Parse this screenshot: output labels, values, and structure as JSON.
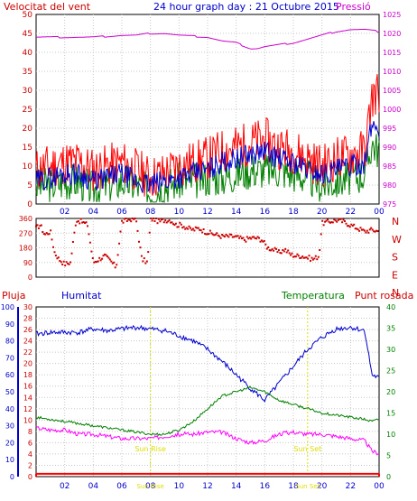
{
  "header": {
    "left_title": "Velocitat del vent",
    "center_title": "24 hour graph day : 21 Octubre 2015",
    "right_title": "Pressió"
  },
  "lower_header": {
    "rain_label": "Pluja",
    "humidity_label": "Humitat",
    "temperature_label": "Temperatura",
    "dewpoint_label": "Punt rosada"
  },
  "colors": {
    "wind_gust": "#ff0000",
    "wind_avg": "#0000cc",
    "wind_green": "#008000",
    "pressure": "#cc00cc",
    "direction": "#cc0000",
    "humidity": "#0000cc",
    "temperature": "#008000",
    "dewpoint": "#ff00ff",
    "rain": "#ff0000",
    "sun": "#dddd00",
    "title": "#0000cc",
    "axis_red": "#cc0000",
    "axis_blue": "#0000cc",
    "axis_green": "#008000",
    "axis_magenta": "#cc00cc"
  },
  "sun_labels": {
    "rise": "Sun Rise",
    "set": "Sun Set"
  },
  "chart_data": [
    {
      "type": "line",
      "x_tick_labels": [
        "02",
        "04",
        "06",
        "08",
        "10",
        "12",
        "14",
        "16",
        "18",
        "20",
        "22",
        "00"
      ],
      "left_axis": {
        "label": "Velocitat del vent",
        "ticks": [
          "0",
          "5",
          "10",
          "15",
          "20",
          "25",
          "30",
          "35",
          "40",
          "45",
          "50"
        ],
        "range": [
          0,
          50
        ]
      },
      "right_axis": {
        "label": "Pressió",
        "ticks": [
          "975",
          "980",
          "985",
          "990",
          "995",
          "1000",
          "1005",
          "1010",
          "1015",
          "1020",
          "1025"
        ],
        "range": [
          975,
          1025
        ]
      },
      "grid": true,
      "series": [
        {
          "axis": "right",
          "x": [
            0.0,
            2.0,
            4.0,
            6.0,
            7.0,
            8.0,
            9.0,
            10.0,
            12.0,
            13.0,
            14.0,
            15.0,
            15.5,
            16.0,
            17.0,
            18.0,
            19.0,
            20.0,
            21.0,
            22.0,
            23.0,
            24.0
          ],
          "values": [
            1019,
            1019,
            1019,
            1019.5,
            1019.5,
            1020,
            1020,
            1019.5,
            1019,
            1018,
            1017.5,
            1016,
            1016,
            1016.5,
            1017,
            1017.5,
            1018.5,
            1019.5,
            1020.5,
            1021,
            1021,
            1020.5
          ]
        },
        {
          "axis": "left",
          "x": [
            0,
            1,
            2,
            3,
            4,
            5,
            6,
            7,
            8,
            9,
            10,
            11,
            12,
            13,
            14,
            15,
            16,
            17,
            18,
            19,
            20,
            21,
            22,
            23,
            23.5,
            24
          ],
          "values": [
            9,
            10,
            11,
            11,
            9,
            10,
            11,
            9,
            7,
            8,
            10,
            11,
            12,
            14,
            15,
            16,
            17,
            15,
            14,
            12,
            10,
            12,
            13,
            14,
            28,
            30
          ]
        },
        {
          "axis": "left",
          "x": [
            0,
            1,
            2,
            3,
            4,
            5,
            6,
            7,
            8,
            9,
            10,
            11,
            12,
            13,
            14,
            15,
            16,
            17,
            18,
            19,
            20,
            21,
            22,
            23,
            23.5,
            24
          ],
          "values": [
            6,
            7,
            8,
            8,
            6,
            7,
            8,
            6,
            5,
            6,
            7,
            8,
            9,
            11,
            12,
            13,
            14,
            12,
            11,
            9,
            8,
            9,
            10,
            11,
            21,
            20
          ]
        },
        {
          "axis": "left",
          "x": [
            0,
            1,
            2,
            3,
            4,
            5,
            6,
            7,
            8,
            9,
            10,
            11,
            12,
            13,
            14,
            15,
            16,
            17,
            18,
            19,
            20,
            21,
            22,
            23,
            23.5,
            24
          ],
          "values": [
            5,
            5,
            6,
            6,
            4,
            5,
            6,
            5,
            3,
            5,
            6,
            6,
            7,
            7,
            8,
            9,
            9,
            9,
            8,
            7,
            5,
            6,
            7,
            8,
            16,
            14
          ]
        }
      ]
    },
    {
      "type": "scatter",
      "left_axis": {
        "ticks": [
          "0",
          "90",
          "180",
          "270",
          "360"
        ],
        "range": [
          0,
          360
        ]
      },
      "right_axis": {
        "ticks": [
          "N",
          "W",
          "S",
          "E",
          "N"
        ]
      },
      "x": [
        0.0,
        0.3,
        0.6,
        1.0,
        1.3,
        1.6,
        2.0,
        2.4,
        2.8,
        3.2,
        3.6,
        4.0,
        4.4,
        4.8,
        5.2,
        5.6,
        6.0,
        6.4,
        6.8,
        7.0,
        7.4,
        7.8,
        8.0,
        8.2,
        8.6,
        9.0,
        9.4,
        9.8,
        10.2,
        10.6,
        11.0,
        11.4,
        11.8,
        12.2,
        12.6,
        13.0,
        13.4,
        13.8,
        14.2,
        14.6,
        15.0,
        15.4,
        15.8,
        16.2,
        16.6,
        17.0,
        17.4,
        17.8,
        18.2,
        18.6,
        19.0,
        19.4,
        19.8,
        20.0,
        20.5,
        21.0,
        21.5,
        22.0,
        22.5,
        23.0,
        23.5,
        24.0
      ],
      "values": [
        300,
        320,
        260,
        280,
        150,
        110,
        80,
        90,
        350,
        340,
        320,
        90,
        110,
        130,
        100,
        60,
        340,
        350,
        360,
        350,
        110,
        90,
        350,
        360,
        340,
        350,
        350,
        320,
        320,
        300,
        290,
        300,
        280,
        270,
        260,
        250,
        250,
        250,
        240,
        230,
        240,
        240,
        230,
        180,
        170,
        150,
        170,
        140,
        130,
        130,
        120,
        110,
        130,
        330,
        340,
        350,
        340,
        320,
        300,
        280,
        290,
        280
      ]
    },
    {
      "type": "line",
      "x_tick_labels": [
        "02",
        "04",
        "06",
        "08",
        "10",
        "12",
        "14",
        "16",
        "18",
        "20",
        "22",
        "00"
      ],
      "left_axis_humidity": {
        "label": "Humitat",
        "ticks": [
          "0",
          "10",
          "20",
          "30",
          "40",
          "50",
          "60",
          "70",
          "80",
          "90",
          "100"
        ],
        "range": [
          0,
          100
        ]
      },
      "left_axis_rain": {
        "label": "Pluja",
        "ticks": [
          "0",
          "2",
          "4",
          "6",
          "8",
          "10",
          "12",
          "14",
          "16",
          "18",
          "20",
          "22",
          "24",
          "26",
          "28",
          "30"
        ],
        "range": [
          0,
          30
        ]
      },
      "right_axis": {
        "label": "Temperatura",
        "ticks": [
          "0",
          "5",
          "10",
          "15",
          "20",
          "25",
          "30",
          "35",
          "40"
        ],
        "range": [
          0,
          40
        ]
      },
      "grid": true,
      "series": [
        {
          "axis": "humidity",
          "x": [
            0,
            1,
            2,
            3,
            4,
            5,
            6,
            7,
            8,
            9,
            10,
            11,
            12,
            13,
            14,
            15,
            16,
            17,
            18,
            19,
            20,
            21,
            22,
            23,
            23.5,
            24
          ],
          "values": [
            84,
            85,
            85,
            85,
            87,
            86,
            87,
            88,
            87,
            86,
            83,
            80,
            75,
            68,
            60,
            52,
            45,
            55,
            65,
            75,
            82,
            87,
            88,
            86,
            60,
            58
          ]
        },
        {
          "axis": "temperature",
          "x": [
            0,
            1,
            2,
            3,
            4,
            5,
            6,
            7,
            8,
            9,
            10,
            11,
            12,
            13,
            14,
            15,
            16,
            17,
            18,
            19,
            20,
            21,
            22,
            23,
            23.5,
            24
          ],
          "values": [
            14,
            13.5,
            13,
            12.5,
            12,
            11.5,
            11,
            10.5,
            10,
            10,
            11,
            13,
            16,
            19,
            20,
            21,
            20,
            18,
            17,
            16,
            15,
            14.5,
            14,
            13.5,
            13,
            13.5
          ]
        },
        {
          "axis": "temperature",
          "x": [
            0,
            1,
            2,
            3,
            4,
            5,
            6,
            7,
            8,
            9,
            10,
            11,
            12,
            13,
            14,
            15,
            16,
            17,
            18,
            19,
            20,
            21,
            22,
            23,
            23.5,
            24
          ],
          "values": [
            11.5,
            11,
            11,
            10,
            10,
            9.5,
            9,
            9,
            9,
            9.5,
            10,
            10,
            10.5,
            10.5,
            9,
            8,
            8.5,
            10,
            10.5,
            10,
            10,
            9.5,
            9,
            8.5,
            6,
            5.5
          ]
        },
        {
          "axis": "rain",
          "x": [
            0,
            24
          ],
          "values": [
            0.5,
            0.5
          ]
        }
      ],
      "annotations": [
        {
          "x": 8.0,
          "text": "Sun Rise"
        },
        {
          "x": 19.0,
          "text": "Sun Set"
        }
      ]
    }
  ]
}
